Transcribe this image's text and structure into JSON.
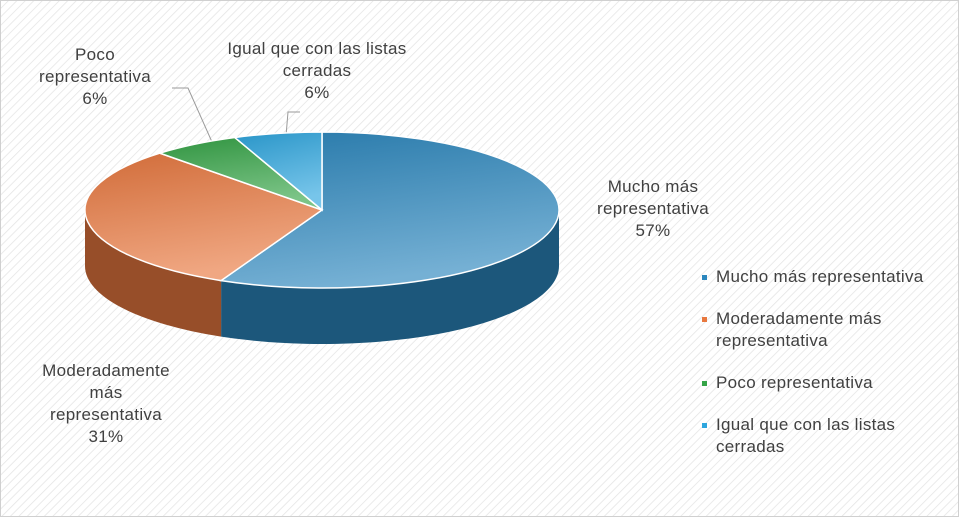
{
  "chart_data": {
    "type": "pie",
    "categories": [
      "Mucho más representativa",
      "Moderadamente más representativa",
      "Poco representativa",
      "Igual que con las listas cerradas"
    ],
    "values": [
      57,
      31,
      6,
      6
    ],
    "value_labels": [
      "57%",
      "31%",
      "6%",
      "6%"
    ],
    "colors": [
      "#2b86bd",
      "#e8783f",
      "#35a447",
      "#2ea6de"
    ],
    "legend": "right"
  }
}
